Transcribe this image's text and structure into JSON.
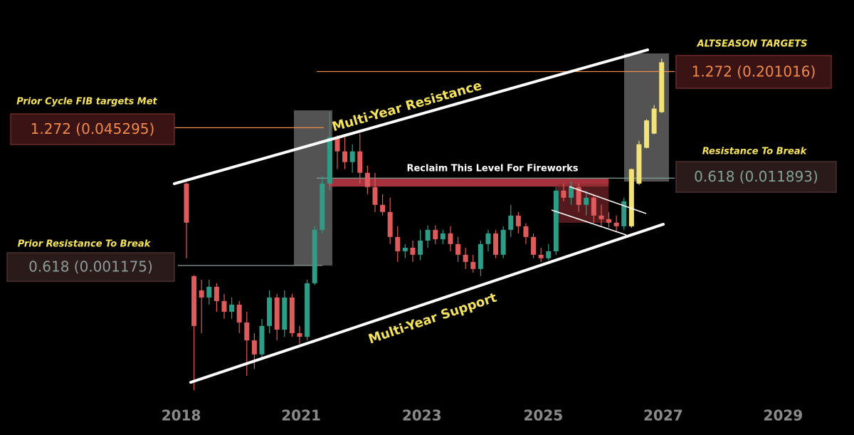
{
  "chart_data": {
    "type": "candlestick",
    "log_scale": true,
    "ylim": [
      1.31e-05,
      1.34
    ],
    "xlim": [
      -2,
      88.5
    ],
    "xticks": [
      {
        "value": -0.7,
        "label": "2018"
      },
      {
        "value": 15.2,
        "label": "2021"
      },
      {
        "value": 31.2,
        "label": "2023"
      },
      {
        "value": 47.3,
        "label": "2025"
      },
      {
        "value": 63.2,
        "label": "2027"
      },
      {
        "value": 79.1,
        "label": "2029"
      }
    ],
    "up_color": "#2e9c86",
    "down_color": "#df5a5a",
    "projection_color": "#f2e27a",
    "candles": {
      "x": [
        0,
        1,
        2,
        3,
        4,
        5,
        6,
        7,
        8,
        9,
        10,
        11,
        12,
        13,
        14,
        15,
        16,
        17,
        18,
        19,
        20,
        21,
        22,
        23,
        24,
        25,
        26,
        27,
        28,
        29,
        30,
        31,
        32,
        33,
        34,
        35,
        36,
        37,
        38,
        39,
        40,
        41,
        42,
        43,
        44,
        45,
        46,
        47,
        48,
        49,
        50,
        51,
        52,
        53,
        54,
        55,
        56,
        57,
        58
      ],
      "open": [
        0.0103,
        0.000885,
        0.000607,
        0.000502,
        0.000667,
        0.000457,
        0.000344,
        0.000416,
        0.000259,
        0.000161,
        0.000111,
        0.000236,
        0.000502,
        0.000214,
        0.000502,
        0.000195,
        0.000177,
        0.000733,
        0.00302,
        0.0103,
        0.0353,
        0.0242,
        0.0182,
        0.0242,
        0.0137,
        0.0094,
        0.00586,
        0.00485,
        0.0025,
        0.00171,
        0.00188,
        0.00156,
        0.00227,
        0.00302,
        0.00235,
        0.00275,
        0.00207,
        0.00156,
        0.00129,
        0.00107,
        0.00207,
        0.00275,
        0.00156,
        0.00302,
        0.00441,
        0.00332,
        0.0025,
        0.00156,
        0.00142,
        0.00171,
        0.00855,
        0.00708,
        0.0094,
        0.00586,
        0.00708,
        0.00441,
        0.00401,
        0.00365,
        0.00332
      ],
      "high": [
        0.0106,
        0.00091,
        0.000805,
        0.000805,
        0.000733,
        0.000552,
        0.000502,
        0.000457,
        0.000344,
        0.000195,
        0.000285,
        0.000607,
        0.000552,
        0.000607,
        0.000552,
        0.000236,
        0.000805,
        0.00332,
        0.0125,
        0.0684,
        0.037,
        0.0353,
        0.0292,
        0.0388,
        0.0166,
        0.0137,
        0.00778,
        0.00708,
        0.00332,
        0.00207,
        0.00227,
        0.00302,
        0.0034,
        0.0034,
        0.00302,
        0.00332,
        0.0025,
        0.00188,
        0.00156,
        0.00227,
        0.00302,
        0.00302,
        0.00332,
        0.00586,
        0.00485,
        0.0036,
        0.00275,
        0.00188,
        0.00207,
        0.0094,
        0.0103,
        0.0108,
        0.0103,
        0.00855,
        0.00778,
        0.00586,
        0.00485,
        0.00441,
        0.00708
      ],
      "low": [
        0.00142,
        4.3e-05,
        0.000195,
        0.000416,
        0.000344,
        0.000285,
        0.000285,
        0.000195,
        6.27e-05,
        7.58e-05,
        0.000101,
        0.000195,
        0.000161,
        0.000177,
        0.000177,
        0.000147,
        0.000161,
        0.0007,
        0.00275,
        0.00855,
        0.0151,
        0.0151,
        0.0137,
        0.0103,
        0.00778,
        0.00485,
        0.00441,
        0.00207,
        0.00129,
        0.00142,
        0.00129,
        0.00135,
        0.00188,
        0.00207,
        0.00207,
        0.00171,
        0.00129,
        0.00107,
        0.000973,
        0.000885,
        0.00171,
        0.00142,
        0.00142,
        0.0025,
        0.00275,
        0.00207,
        0.00142,
        0.00129,
        0.00135,
        0.00156,
        0.00644,
        0.00586,
        0.00485,
        0.00441,
        0.00365,
        0.00332,
        0.0032,
        0.0029,
        0.00302
      ],
      "close": [
        0.00365,
        0.000236,
        0.000502,
        0.000667,
        0.000457,
        0.000344,
        0.000416,
        0.000259,
        0.000161,
        0.000111,
        0.000236,
        0.000502,
        0.000214,
        0.000502,
        0.000195,
        0.000177,
        0.000733,
        0.00302,
        0.0103,
        0.0353,
        0.0242,
        0.0182,
        0.0242,
        0.0137,
        0.0094,
        0.00586,
        0.00485,
        0.0025,
        0.00171,
        0.00188,
        0.00156,
        0.00227,
        0.00302,
        0.00235,
        0.00275,
        0.00207,
        0.00156,
        0.00129,
        0.00107,
        0.00207,
        0.00275,
        0.00156,
        0.00302,
        0.00441,
        0.00332,
        0.0025,
        0.00156,
        0.00142,
        0.00171,
        0.00855,
        0.00708,
        0.0094,
        0.00586,
        0.00708,
        0.00441,
        0.00401,
        0.00365,
        0.00332,
        0.00644
      ]
    },
    "projection": {
      "x": [
        59,
        60,
        61,
        62,
        63
      ],
      "open": [
        0.00332,
        0.0103,
        0.0266,
        0.0388,
        0.0684
      ],
      "high": [
        0.0153,
        0.0321,
        0.0566,
        0.0827,
        0.283
      ],
      "low": [
        0.0032,
        0.01,
        0.0262,
        0.038,
        0.067
      ],
      "close": [
        0.0151,
        0.0292,
        0.055,
        0.0752,
        0.257
      ]
    },
    "levels": [
      {
        "caption": "Prior Cycle FIB targets Met",
        "label": "1.272 (0.045295)",
        "value": 0.045295,
        "color": "#f0884a"
      },
      {
        "caption": "Prior Resistance To Break",
        "label": "0.618 (0.001175)",
        "value": 0.001175,
        "color": "#8c9c9a"
      },
      {
        "caption": "ALTSEASON TARGETS",
        "label": "1.272 (0.201016)",
        "value": 0.201016,
        "color": "#f0884a"
      },
      {
        "caption": "Resistance To Break",
        "label": "0.618 (0.011893)",
        "value": 0.011893,
        "color": "#7fa396"
      }
    ],
    "annotations": {
      "reclaim": "Reclaim This Level For Fireworks",
      "resistance_line": "Multi-Year Resistance",
      "support_line": "Multi-Year Support"
    }
  }
}
